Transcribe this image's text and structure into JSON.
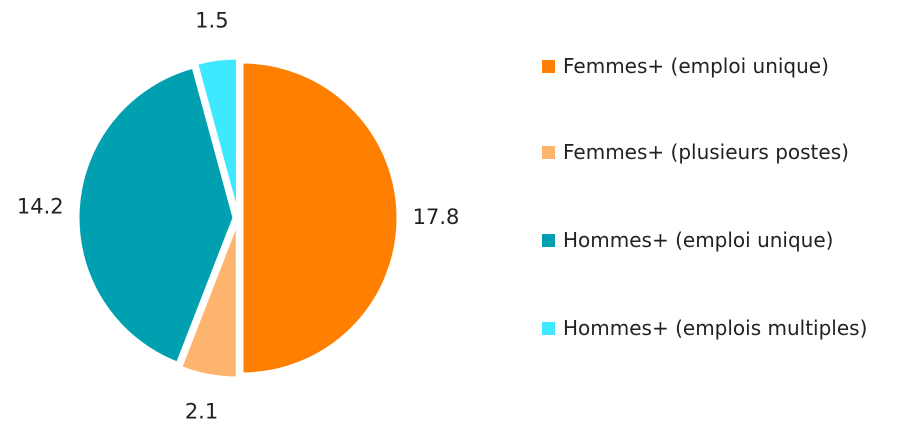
{
  "chart_data": {
    "type": "pie",
    "categories": [
      "Femmes+ (emploi unique)",
      "Femmes+ (plusieurs postes)",
      "Hommes+ (emploi unique)",
      "Hommes+ (emplois multiples)"
    ],
    "values": [
      17.8,
      2.1,
      14.2,
      1.5
    ],
    "colors": [
      "#ff7f00",
      "#fdb46e",
      "#00a0b0",
      "#3ee8ff"
    ],
    "legend": "right"
  }
}
